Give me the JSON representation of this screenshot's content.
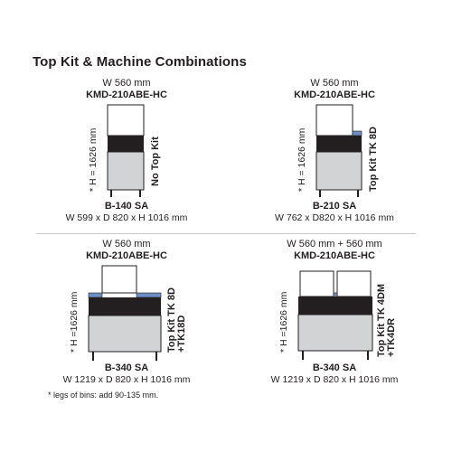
{
  "title": "Top Kit & Machine Combinations",
  "footnote": "* legs of bins: add 90-135 mm.",
  "colors": {
    "text": "#231f20",
    "machine_body": "#ffffff",
    "machine_black": "#231f20",
    "bin_gray": "#d1d3d4",
    "top_kit_blue": "#6b8fc4",
    "outline": "#231f20"
  },
  "combinations": [
    {
      "width_label": "W 560 mm",
      "model": "KMD-210ABE-HC",
      "height_label": "* H = 1626 mm",
      "kit_label": [
        "No Top Kit"
      ],
      "bin_name": "B-140 SA",
      "bin_dims": "W 599 x D 820 x H 1016 mm"
    },
    {
      "width_label": "W 560 mm",
      "model": "KMD-210ABE-HC",
      "height_label": "* H = 1626 mm",
      "kit_label": [
        "Top Kit TK 8D"
      ],
      "bin_name": "B-210 SA",
      "bin_dims": "W 762 x D820 x H 1016 mm"
    },
    {
      "width_label": "W 560 mm",
      "model": "KMD-210ABE-HC",
      "height_label": "* H =1626 mm",
      "kit_label": [
        "Top Kit TK 8D",
        "+TK18D"
      ],
      "bin_name": "B-340 SA",
      "bin_dims": "W 1219 x D 820 x H 1016 mm"
    },
    {
      "width_label": "W 560 mm + 560 mm",
      "model": "KMD-210ABE-HC",
      "height_label": "* H =1626 mm",
      "kit_label": [
        "Top Kit TK 4DM",
        "+TK4DR"
      ],
      "bin_name": "B-340 SA",
      "bin_dims": "W 1219 x D 820 x H 1016 mm"
    }
  ]
}
